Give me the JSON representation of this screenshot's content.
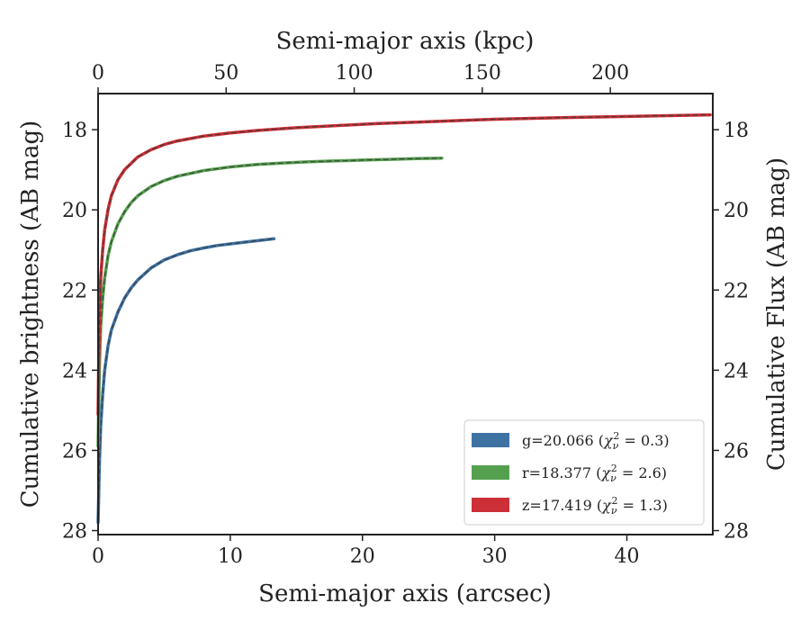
{
  "chart_data": {
    "type": "line",
    "xlabel": "Semi-major axis (arcsec)",
    "x2label": "Semi-major axis (kpc)",
    "ylabel": "Cumulative brightness (AB mag)",
    "y2label": "Cumulative Flux (AB mag)",
    "xlim": [
      0,
      46.5
    ],
    "x2lim": [
      0,
      240
    ],
    "ylim": [
      28.1,
      17.1
    ],
    "y_inverted": true,
    "xticks": [
      0,
      10,
      20,
      30,
      40
    ],
    "x2ticks": [
      0,
      50,
      100,
      150,
      200
    ],
    "yticks": [
      18,
      20,
      22,
      24,
      26,
      28
    ],
    "legend_position": "lower-right",
    "series": [
      {
        "name": "g=20.066",
        "chi_label": "χ",
        "chi_sub": "ν",
        "chi_sup": "2",
        "chi_value": " = 0.3)",
        "color": "#3e72a3",
        "x": [
          0.0,
          0.1,
          0.2,
          0.35,
          0.5,
          0.75,
          1.0,
          1.5,
          2.0,
          2.5,
          3.0,
          4.0,
          5.0,
          6.0,
          7.0,
          8.0,
          9.0,
          10.0,
          11.0,
          12.0,
          13.3
        ],
        "y": [
          27.8,
          26.3,
          25.4,
          24.6,
          24.0,
          23.4,
          23.0,
          22.55,
          22.2,
          21.95,
          21.75,
          21.45,
          21.25,
          21.12,
          21.02,
          20.95,
          20.89,
          20.85,
          20.81,
          20.77,
          20.72
        ]
      },
      {
        "name": "r=18.377",
        "chi_label": "χ",
        "chi_sub": "ν",
        "chi_sup": "2",
        "chi_value": " = 2.6)",
        "color": "#55a04f",
        "x": [
          0.0,
          0.05,
          0.1,
          0.2,
          0.35,
          0.5,
          0.75,
          1.0,
          1.5,
          2.0,
          2.5,
          3.0,
          4.0,
          5.0,
          6.0,
          8.0,
          10.0,
          12.0,
          14.0,
          16.0,
          18.0,
          20.0,
          22.0,
          24.0,
          26.0
        ],
        "y": [
          25.9,
          24.8,
          23.9,
          22.9,
          22.2,
          21.7,
          21.15,
          20.8,
          20.35,
          20.05,
          19.82,
          19.65,
          19.42,
          19.27,
          19.16,
          19.02,
          18.93,
          18.87,
          18.83,
          18.8,
          18.78,
          18.76,
          18.74,
          18.72,
          18.71
        ]
      },
      {
        "name": "z=17.419",
        "chi_label": "χ",
        "chi_sub": "ν",
        "chi_sup": "2",
        "chi_value": " = 1.3)",
        "color": "#cc2f35",
        "x": [
          0.0,
          0.05,
          0.1,
          0.2,
          0.35,
          0.5,
          0.75,
          1.0,
          1.5,
          2.0,
          3.0,
          4.0,
          5.0,
          6.0,
          8.0,
          10.0,
          12.0,
          15.0,
          18.0,
          21.0,
          25.0,
          30.0,
          35.0,
          40.0,
          46.3
        ],
        "y": [
          25.1,
          23.8,
          22.8,
          21.7,
          21.0,
          20.5,
          20.0,
          19.65,
          19.25,
          19.0,
          18.68,
          18.5,
          18.37,
          18.28,
          18.16,
          18.08,
          18.02,
          17.95,
          17.9,
          17.85,
          17.8,
          17.74,
          17.7,
          17.67,
          17.63
        ]
      }
    ]
  }
}
